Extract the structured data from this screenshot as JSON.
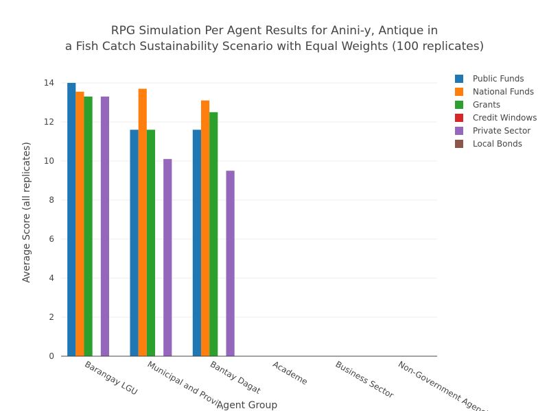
{
  "colors": {
    "background": "#ffffff",
    "grid": "#eeeeee",
    "axis": "#444444",
    "public_funds": "#1f77b4",
    "national_funds": "#ff7f0e",
    "grants": "#2ca02c",
    "credit_windows": "#d62728",
    "private_sector": "#9467bd",
    "local_bonds": "#8c564b"
  },
  "chart_data": {
    "type": "bar",
    "title_lines": [
      "RPG Simulation Per Agent Results for Anini-y, Antique in",
      "a Fish Catch Sustainability Scenario with Equal Weights (100 replicates)"
    ],
    "xlabel": "Agent Group",
    "ylabel": "Average Score (all replicates)",
    "ylim": [
      0,
      14
    ],
    "yticks": [
      0,
      2,
      4,
      6,
      8,
      10,
      12,
      14
    ],
    "grid": true,
    "legend_position": "top-right",
    "categories": [
      "Barangay LGU",
      "Municipal and Provincial LGU",
      "Bantay Dagat",
      "Academe",
      "Business Sector",
      "Non-Government Agencies"
    ],
    "category_labels": [
      "Barangay LGU",
      "Municipal and Provi…",
      "Bantay Dagat",
      "Academe",
      "Business Sector",
      "Non-Government Agenci…"
    ],
    "series": [
      {
        "name": "Public Funds",
        "color": "#1f77b4",
        "values": [
          14.0,
          11.6,
          11.6,
          null,
          null,
          null
        ]
      },
      {
        "name": "National Funds",
        "color": "#ff7f0e",
        "values": [
          13.55,
          13.7,
          13.1,
          null,
          null,
          null
        ]
      },
      {
        "name": "Grants",
        "color": "#2ca02c",
        "values": [
          13.3,
          11.6,
          12.5,
          null,
          null,
          null
        ]
      },
      {
        "name": "Credit Windows",
        "color": "#d62728",
        "values": [
          null,
          null,
          null,
          null,
          null,
          null
        ]
      },
      {
        "name": "Private Sector",
        "color": "#9467bd",
        "values": [
          13.3,
          10.1,
          9.5,
          null,
          null,
          null
        ]
      },
      {
        "name": "Local Bonds",
        "color": "#8c564b",
        "values": [
          null,
          null,
          null,
          null,
          null,
          null
        ]
      }
    ]
  }
}
